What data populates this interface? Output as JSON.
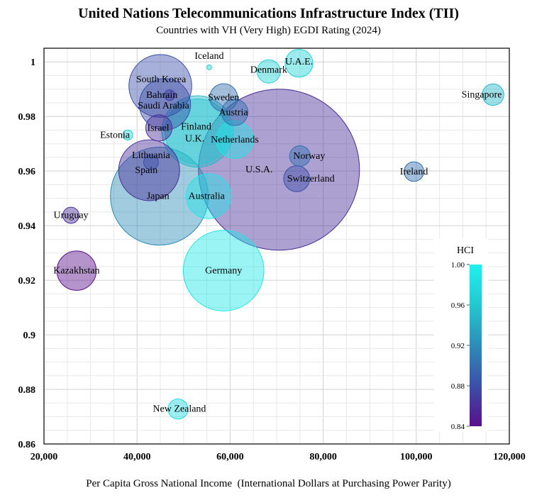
{
  "chart_data": {
    "type": "scatter",
    "title": "United Nations Telecommunications Infrastructure Index (TII)",
    "subtitle": "Countries with VH (Very High) EGDI Rating (2024)",
    "xlabel": "Per Capita Gross National Income  (International Dollars at Purchasing Power Parity)",
    "ylabel": "",
    "xlim": [
      20000,
      120000
    ],
    "ylim": [
      0.86,
      1.005
    ],
    "x_ticks": [
      "20,000",
      "40,000",
      "60,000",
      "80,000",
      "100,000",
      "120,000"
    ],
    "y_ticks": [
      "0.86",
      "0.88",
      "0.9",
      "0.92",
      "0.94",
      "0.96",
      "0.98",
      "1"
    ],
    "grid": true,
    "colorbar": {
      "title": "HCI",
      "range": [
        0.84,
        1.0
      ],
      "ticks": [
        "0.84",
        "0.88",
        "0.92",
        "0.96",
        "1.00"
      ],
      "colors": [
        "#5a0f8c",
        "#3b4fa8",
        "#2e8cb8",
        "#24c8d0",
        "#1ff0ee"
      ]
    },
    "points": [
      {
        "name": "Iceland",
        "x": 55500,
        "y": 0.998,
        "size": 0.3,
        "hci": 0.97
      },
      {
        "name": "U.A.E.",
        "x": 74800,
        "y": 0.9995,
        "size": 10,
        "hci": 0.97
      },
      {
        "name": "Denmark",
        "x": 68300,
        "y": 0.9965,
        "size": 7,
        "hci": 0.97
      },
      {
        "name": "South Korea",
        "x": 45000,
        "y": 0.9912,
        "size": 51,
        "hci": 0.88
      },
      {
        "name": "Singapore",
        "x": 116500,
        "y": 0.988,
        "size": 6,
        "hci": 0.95
      },
      {
        "name": "Bahrain",
        "x": 47000,
        "y": 0.9878,
        "size": 1.5,
        "hci": 0.87
      },
      {
        "name": "Sweden",
        "x": 58600,
        "y": 0.9869,
        "size": 10,
        "hci": 0.9
      },
      {
        "name": "Saudi Arabia",
        "x": 46000,
        "y": 0.9845,
        "size": 34,
        "hci": 0.88
      },
      {
        "name": "Austria",
        "x": 61000,
        "y": 0.9815,
        "size": 9,
        "hci": 0.9
      },
      {
        "name": "Finland",
        "x": 53000,
        "y": 0.9745,
        "size": 55,
        "hci": 0.96
      },
      {
        "name": "Israel",
        "x": 44700,
        "y": 0.9758,
        "size": 9,
        "hci": 0.86
      },
      {
        "name": "U.K.",
        "x": 53000,
        "y": 0.9745,
        "size": 66,
        "hci": 0.95
      },
      {
        "name": "Estonia",
        "x": 38000,
        "y": 0.9732,
        "size": 1.3,
        "hci": 0.97
      },
      {
        "name": "Netherlands",
        "x": 61000,
        "y": 0.9715,
        "size": 18,
        "hci": 0.99
      },
      {
        "name": "Lithuania",
        "x": 43000,
        "y": 0.9632,
        "size": 2.8,
        "hci": 0.88
      },
      {
        "name": "Norway",
        "x": 75000,
        "y": 0.9655,
        "size": 5.5,
        "hci": 0.9
      },
      {
        "name": "U.S.A.",
        "x": 70500,
        "y": 0.9605,
        "size": 335,
        "hci": 0.86
      },
      {
        "name": "Spain",
        "x": 42600,
        "y": 0.9603,
        "size": 48,
        "hci": 0.86
      },
      {
        "name": "Ireland",
        "x": 99500,
        "y": 0.9598,
        "size": 5,
        "hci": 0.9
      },
      {
        "name": "Switzerland",
        "x": 74300,
        "y": 0.9572,
        "size": 8.7,
        "hci": 0.88
      },
      {
        "name": "Japan",
        "x": 44800,
        "y": 0.9508,
        "size": 124,
        "hci": 0.92
      },
      {
        "name": "Australia",
        "x": 55400,
        "y": 0.9508,
        "size": 26,
        "hci": 0.99
      },
      {
        "name": "Uruguay",
        "x": 25800,
        "y": 0.9438,
        "size": 3.4,
        "hci": 0.86
      },
      {
        "name": "Kazakhstan",
        "x": 27000,
        "y": 0.9235,
        "size": 20,
        "hci": 0.84
      },
      {
        "name": "Germany",
        "x": 58600,
        "y": 0.9235,
        "size": 84,
        "hci": 0.99
      },
      {
        "name": "New Zealand",
        "x": 48800,
        "y": 0.8728,
        "size": 5.2,
        "hci": 0.98
      }
    ]
  }
}
